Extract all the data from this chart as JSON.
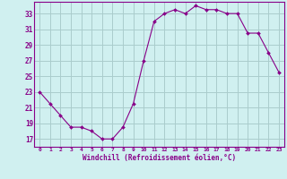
{
  "x": [
    0,
    1,
    2,
    3,
    4,
    5,
    6,
    7,
    8,
    9,
    10,
    11,
    12,
    13,
    14,
    15,
    16,
    17,
    18,
    19,
    20,
    21,
    22,
    23
  ],
  "y": [
    23,
    21.5,
    20,
    18.5,
    18.5,
    18,
    17,
    17,
    18.5,
    21.5,
    27,
    32,
    33,
    33.5,
    33,
    34,
    33.5,
    33.5,
    33,
    33,
    30.5,
    30.5,
    28,
    25.5
  ],
  "line_color": "#880088",
  "marker_color": "#880088",
  "bg_color": "#d0f0f0",
  "grid_color": "#aacccc",
  "xlabel": "Windchill (Refroidissement éolien,°C)",
  "xlabel_color": "#880088",
  "ylabel_ticks": [
    17,
    19,
    21,
    23,
    25,
    27,
    29,
    31,
    33
  ],
  "xtick_labels": [
    "0",
    "1",
    "2",
    "3",
    "4",
    "5",
    "6",
    "7",
    "8",
    "9",
    "10",
    "11",
    "12",
    "13",
    "14",
    "15",
    "16",
    "17",
    "18",
    "19",
    "20",
    "21",
    "22",
    "23"
  ],
  "xlim": [
    -0.5,
    23.5
  ],
  "ylim": [
    16.0,
    34.5
  ],
  "axis_color": "#880088",
  "tick_color": "#880088"
}
